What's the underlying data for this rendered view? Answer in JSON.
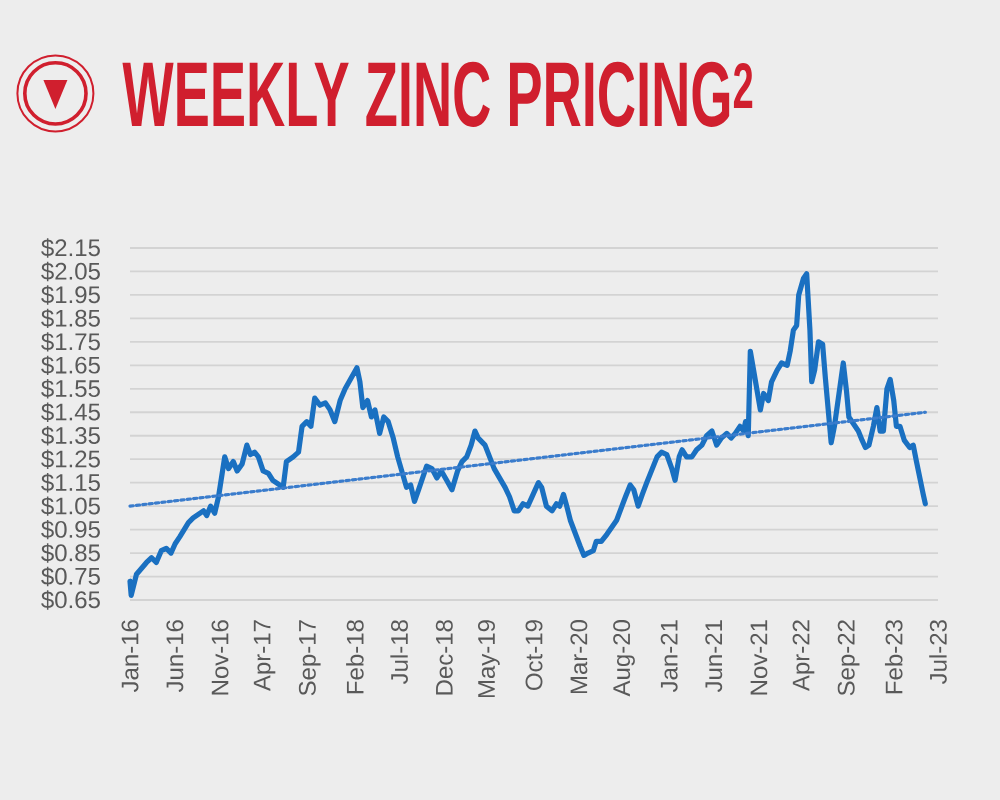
{
  "chart_data": {
    "type": "line",
    "title": "WEEKLY ZINC PRICING$^{2}$",
    "xlim": [
      "2016-01-01",
      "2023-07-01"
    ],
    "xticks": [
      {
        "value": "2016-01-01",
        "label": "Jan-16"
      },
      {
        "value": "2016-06-01",
        "label": "Jun-16"
      },
      {
        "value": "2016-11-01",
        "label": "Nov-16"
      },
      {
        "value": "2017-04-01",
        "label": "Apr-17"
      },
      {
        "value": "2017-09-01",
        "label": "Sep-17"
      },
      {
        "value": "2018-02-01",
        "label": "Feb-18"
      },
      {
        "value": "2018-07-01",
        "label": "Jul-18"
      },
      {
        "value": "2018-12-01",
        "label": "Dec-18"
      },
      {
        "value": "2019-05-01",
        "label": "May-19"
      },
      {
        "value": "2019-10-01",
        "label": "Oct-19"
      },
      {
        "value": "2020-03-01",
        "label": "Mar-20"
      },
      {
        "value": "2020-08-01",
        "label": "Aug-20"
      },
      {
        "value": "2021-01-01",
        "label": "Jan-21"
      },
      {
        "value": "2021-06-01",
        "label": "Jun-21"
      },
      {
        "value": "2021-11-01",
        "label": "Nov-21"
      },
      {
        "value": "2022-04-01",
        "label": "Apr-22"
      },
      {
        "value": "2022-09-01",
        "label": "Sep-22"
      },
      {
        "value": "2023-02-01",
        "label": "Feb-23"
      },
      {
        "value": "2023-07-01",
        "label": "Jul-23"
      }
    ],
    "ylim": [
      0.65,
      2.15
    ],
    "yticks": [
      {
        "value": 0.65,
        "label": "$0.65"
      },
      {
        "value": 0.75,
        "label": "$0.75"
      },
      {
        "value": 0.85,
        "label": "$0.85"
      },
      {
        "value": 0.95,
        "label": "$0.95"
      },
      {
        "value": 1.05,
        "label": "$1.05"
      },
      {
        "value": 1.15,
        "label": "$1.15"
      },
      {
        "value": 1.25,
        "label": "$1.25"
      },
      {
        "value": 1.35,
        "label": "$1.35"
      },
      {
        "value": 1.45,
        "label": "$1.45"
      },
      {
        "value": 1.55,
        "label": "$1.55"
      },
      {
        "value": 1.65,
        "label": "$1.65"
      },
      {
        "value": 1.75,
        "label": "$1.75"
      },
      {
        "value": 1.85,
        "label": "$1.85"
      },
      {
        "value": 1.95,
        "label": "$1.95"
      },
      {
        "value": 2.05,
        "label": "$2.05"
      },
      {
        "value": 2.15,
        "label": "$2.15"
      }
    ],
    "grid": "y",
    "series": [
      {
        "color": "#1a70c1",
        "line_style": "solid",
        "x": [
          "2016-01-01",
          "2016-01-05",
          "2016-01-23",
          "2016-02-26",
          "2016-03-14",
          "2016-03-30",
          "2016-04-16",
          "2016-05-03",
          "2016-05-19",
          "2016-06-02",
          "2016-06-18",
          "2016-07-17",
          "2016-08-02",
          "2016-09-06",
          "2016-09-17",
          "2016-09-30",
          "2016-10-14",
          "2016-10-27",
          "2016-11-17",
          "2016-11-30",
          "2016-12-16",
          "2016-12-29",
          "2017-01-15",
          "2017-01-31",
          "2017-02-12",
          "2017-02-26",
          "2017-03-11",
          "2017-03-27",
          "2017-04-14",
          "2017-04-29",
          "2017-06-03",
          "2017-06-14",
          "2017-07-07",
          "2017-07-25",
          "2017-08-06",
          "2017-08-22",
          "2017-09-05",
          "2017-09-18",
          "2017-10-06",
          "2017-10-24",
          "2017-11-09",
          "2017-11-25",
          "2017-12-13",
          "2017-12-30",
          "2018-02-08",
          "2018-02-18",
          "2018-02-28",
          "2018-03-16",
          "2018-03-29",
          "2018-04-10",
          "2018-04-26",
          "2018-05-10",
          "2018-05-25",
          "2018-06-11",
          "2018-06-26",
          "2018-07-26",
          "2018-08-09",
          "2018-08-22",
          "2018-09-05",
          "2018-10-02",
          "2018-10-20",
          "2018-11-06",
          "2018-11-21",
          "2018-12-09",
          "2018-12-27",
          "2019-01-15",
          "2019-01-30",
          "2019-02-15",
          "2019-03-02",
          "2019-03-15",
          "2019-03-26",
          "2019-04-18",
          "2019-05-19",
          "2019-06-25",
          "2019-07-10",
          "2019-07-26",
          "2019-08-09",
          "2019-08-25",
          "2019-09-10",
          "2019-09-28",
          "2019-10-16",
          "2019-10-27",
          "2019-11-12",
          "2019-12-01",
          "2019-12-16",
          "2019-12-27",
          "2020-01-09",
          "2020-01-20",
          "2020-02-01",
          "2020-03-05",
          "2020-03-18",
          "2020-04-01",
          "2020-04-19",
          "2020-04-29",
          "2020-05-16",
          "2020-06-04",
          "2020-07-07",
          "2020-08-06",
          "2020-08-22",
          "2020-09-03",
          "2020-09-18",
          "2020-10-02",
          "2020-10-17",
          "2020-11-21",
          "2020-12-06",
          "2020-12-24",
          "2021-01-10",
          "2021-01-21",
          "2021-02-04",
          "2021-02-14",
          "2021-03-01",
          "2021-03-19",
          "2021-04-04",
          "2021-04-22",
          "2021-05-08",
          "2021-05-26",
          "2021-06-11",
          "2021-06-27",
          "2021-07-15",
          "2021-07-30",
          "2021-08-13",
          "2021-08-29",
          "2021-09-10",
          "2021-09-17",
          "2021-09-26",
          "2021-10-03",
          "2021-10-14",
          "2021-11-06",
          "2021-11-17",
          "2021-12-03",
          "2021-12-14",
          "2022-01-02",
          "2022-01-17",
          "2022-02-05",
          "2022-02-15",
          "2022-02-26",
          "2022-03-09",
          "2022-03-16",
          "2022-04-01",
          "2022-04-12",
          "2022-04-23",
          "2022-04-29",
          "2022-05-09",
          "2022-05-22",
          "2022-06-05",
          "2022-06-14",
          "2022-07-04",
          "2022-07-15",
          "2022-08-14",
          "2022-08-25",
          "2022-09-02",
          "2022-10-04",
          "2022-10-17",
          "2022-10-28",
          "2022-11-09",
          "2022-11-24",
          "2022-12-06",
          "2022-12-17",
          "2022-12-28",
          "2023-01-09",
          "2023-01-20",
          "2023-02-01",
          "2023-02-10",
          "2023-02-22",
          "2023-03-09",
          "2023-03-27",
          "2023-04-08",
          "2023-04-19",
          "2023-05-12",
          "2023-05-19"
        ],
        "values": [
          0.73,
          0.67,
          0.76,
          0.81,
          0.83,
          0.81,
          0.86,
          0.87,
          0.85,
          0.89,
          0.92,
          0.98,
          1.0,
          1.03,
          1.01,
          1.05,
          1.02,
          1.09,
          1.26,
          1.21,
          1.24,
          1.2,
          1.23,
          1.31,
          1.27,
          1.28,
          1.26,
          1.2,
          1.19,
          1.16,
          1.13,
          1.24,
          1.26,
          1.28,
          1.39,
          1.41,
          1.39,
          1.51,
          1.48,
          1.49,
          1.46,
          1.41,
          1.5,
          1.55,
          1.64,
          1.58,
          1.47,
          1.5,
          1.43,
          1.46,
          1.36,
          1.43,
          1.41,
          1.34,
          1.26,
          1.13,
          1.14,
          1.07,
          1.12,
          1.22,
          1.21,
          1.17,
          1.2,
          1.16,
          1.12,
          1.2,
          1.24,
          1.26,
          1.31,
          1.37,
          1.34,
          1.31,
          1.21,
          1.13,
          1.09,
          1.03,
          1.03,
          1.06,
          1.05,
          1.1,
          1.15,
          1.13,
          1.05,
          1.03,
          1.06,
          1.05,
          1.1,
          1.05,
          0.99,
          0.88,
          0.84,
          0.85,
          0.86,
          0.9,
          0.9,
          0.93,
          0.99,
          1.09,
          1.14,
          1.12,
          1.05,
          1.1,
          1.15,
          1.26,
          1.28,
          1.27,
          1.21,
          1.16,
          1.26,
          1.29,
          1.26,
          1.26,
          1.29,
          1.31,
          1.35,
          1.37,
          1.31,
          1.34,
          1.36,
          1.34,
          1.36,
          1.39,
          1.37,
          1.41,
          1.35,
          1.71,
          1.63,
          1.46,
          1.53,
          1.5,
          1.58,
          1.63,
          1.66,
          1.65,
          1.71,
          1.8,
          1.82,
          1.95,
          2.02,
          2.04,
          1.8,
          1.58,
          1.63,
          1.75,
          1.74,
          1.6,
          1.32,
          1.39,
          1.66,
          1.54,
          1.43,
          1.37,
          1.33,
          1.3,
          1.31,
          1.39,
          1.47,
          1.37,
          1.37,
          1.55,
          1.59,
          1.5,
          1.39,
          1.39,
          1.33,
          1.3,
          1.31,
          1.24,
          1.1,
          1.06
        ]
      },
      {
        "type": "line",
        "color": "#3a7ccc",
        "line_style": "dotted",
        "x": [
          "2016-01-01",
          "2023-05-19"
        ],
        "values": [
          1.05,
          1.45
        ]
      }
    ]
  }
}
